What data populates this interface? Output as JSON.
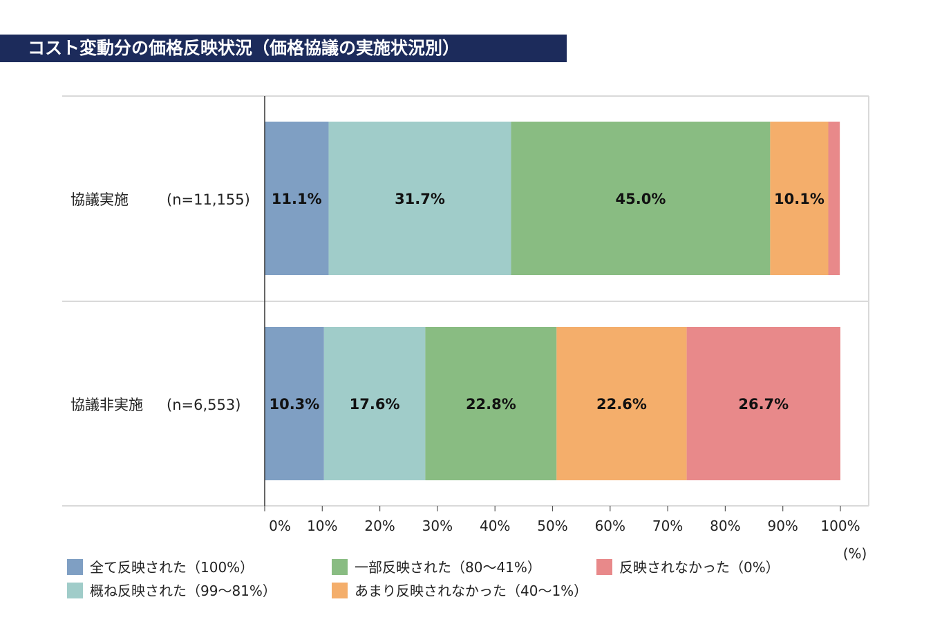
{
  "title": "コスト変動分の価格反映状況（価格協議の実施状況別）",
  "colors": [
    "#7f9fc3",
    "#a0ccc9",
    "#89bc82",
    "#f4ae6b",
    "#e8898a"
  ],
  "chart_data": {
    "type": "bar",
    "orientation": "horizontal-stacked-100",
    "categories": [
      "協議実施",
      "協議非実施"
    ],
    "sample_sizes": [
      "(n=11,155)",
      "(n=6,553)"
    ],
    "series": [
      {
        "name": "全て反映された（100%）",
        "values": [
          11.1,
          10.3
        ]
      },
      {
        "name": "概ね反映された（99～81%）",
        "values": [
          31.7,
          17.6
        ]
      },
      {
        "name": "一部反映された（80～41%）",
        "values": [
          45.0,
          22.8
        ]
      },
      {
        "name": "あまり反映されなかった（40～1%）",
        "values": [
          10.1,
          22.6
        ]
      },
      {
        "name": "反映されなかった（0%）",
        "values": [
          2.0,
          26.7
        ]
      }
    ],
    "data_labels": [
      [
        "11.1%",
        "31.7%",
        "45.0%",
        "10.1%",
        ""
      ],
      [
        "10.3%",
        "17.6%",
        "22.8%",
        "22.6%",
        "26.7%"
      ]
    ],
    "xlim": [
      0,
      100
    ],
    "xticks": [
      "0%",
      "10%",
      "20%",
      "30%",
      "40%",
      "50%",
      "60%",
      "70%",
      "80%",
      "90%",
      "100%"
    ],
    "xlabel": "(%)",
    "legend_position": "bottom"
  }
}
